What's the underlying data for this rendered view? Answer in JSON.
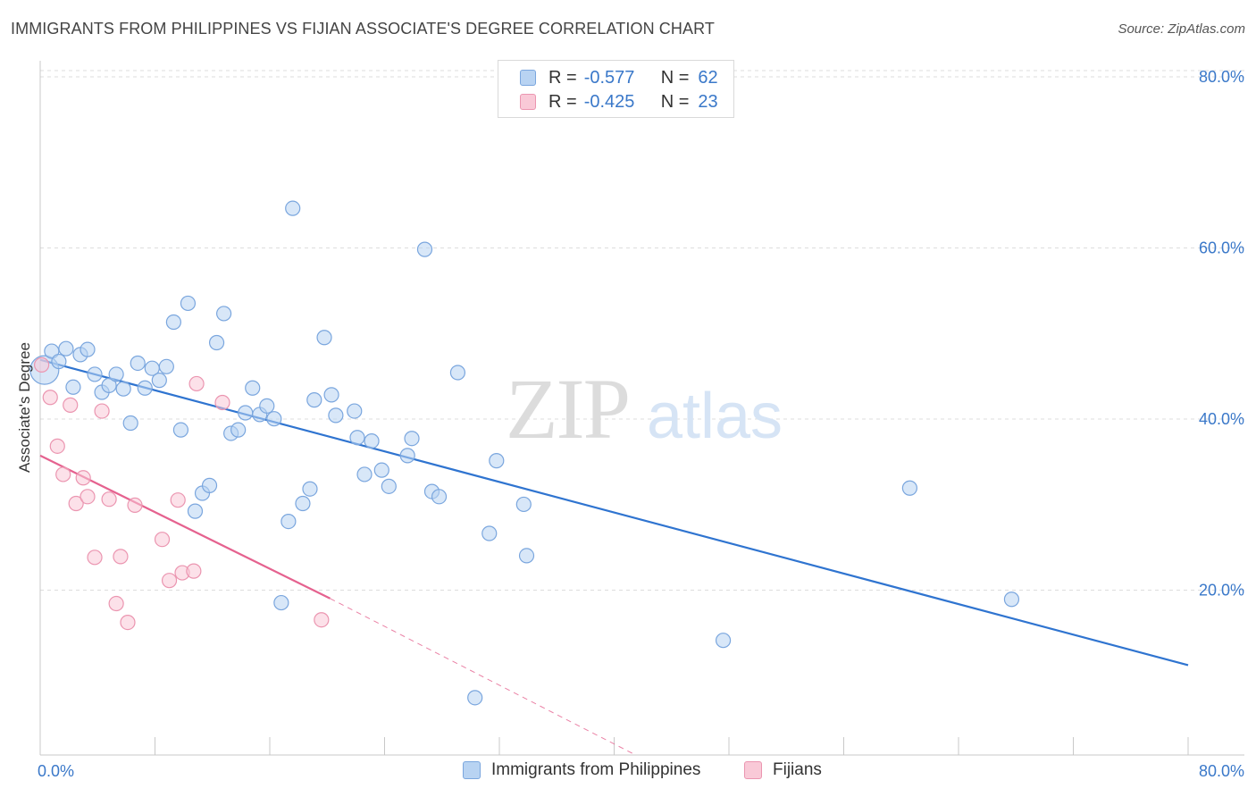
{
  "title": "IMMIGRANTS FROM PHILIPPINES VS FIJIAN ASSOCIATE'S DEGREE CORRELATION CHART",
  "source": "Source: ZipAtlas.com",
  "watermark": {
    "zip": "ZIP",
    "atlas": "atlas"
  },
  "legend": {
    "r_label": "R =",
    "n_label": "N =",
    "rows": [
      {
        "r": "-0.577",
        "n": "62"
      },
      {
        "r": "-0.425",
        "n": "23"
      }
    ]
  },
  "bottom_legend": [
    "Immigrants from Philippines",
    "Fijians"
  ],
  "colors": {
    "blue_fill": "#b8d3f2",
    "blue_stroke": "#7aa6de",
    "blue_line": "#2f74d0",
    "pink_fill": "#f9c9d7",
    "pink_stroke": "#eb95b0",
    "pink_line": "#e5628f",
    "axis_text": "#3a78c9",
    "grid": "#dddddd"
  },
  "chart_data": {
    "type": "scatter",
    "ylabel": "Associate's Degree",
    "xlim": [
      0,
      80
    ],
    "ylim": [
      0,
      80
    ],
    "x_tick_labels": [
      "0.0%",
      "80.0%"
    ],
    "y_ticks": [
      20,
      40,
      60,
      80
    ],
    "y_tick_labels": [
      "20.0%",
      "40.0%",
      "60.0%",
      "80.0%"
    ],
    "grid": true,
    "series": [
      {
        "name": "Immigrants from Philippines",
        "color": "blue",
        "points": [
          [
            0.3,
            45.0
          ],
          [
            0.8,
            47.2
          ],
          [
            1.3,
            46.0
          ],
          [
            1.8,
            47.5
          ],
          [
            2.3,
            43.0
          ],
          [
            2.8,
            46.8
          ],
          [
            3.3,
            47.4
          ],
          [
            3.8,
            44.5
          ],
          [
            4.3,
            42.4
          ],
          [
            4.8,
            43.2
          ],
          [
            5.3,
            44.5
          ],
          [
            5.8,
            42.8
          ],
          [
            6.3,
            38.8
          ],
          [
            6.8,
            45.8
          ],
          [
            7.3,
            42.9
          ],
          [
            7.8,
            45.2
          ],
          [
            8.3,
            43.8
          ],
          [
            8.8,
            45.4
          ],
          [
            9.3,
            50.6
          ],
          [
            9.8,
            38.0
          ],
          [
            10.3,
            52.8
          ],
          [
            10.8,
            28.5
          ],
          [
            11.3,
            30.6
          ],
          [
            11.8,
            31.5
          ],
          [
            12.3,
            48.2
          ],
          [
            12.8,
            51.6
          ],
          [
            13.3,
            37.6
          ],
          [
            13.8,
            38.0
          ],
          [
            14.3,
            40.0
          ],
          [
            14.8,
            42.9
          ],
          [
            15.3,
            39.8
          ],
          [
            15.8,
            40.8
          ],
          [
            16.3,
            39.3
          ],
          [
            16.8,
            17.8
          ],
          [
            17.3,
            27.3
          ],
          [
            17.6,
            63.9
          ],
          [
            18.3,
            29.4
          ],
          [
            18.8,
            31.1
          ],
          [
            19.1,
            41.5
          ],
          [
            19.8,
            48.8
          ],
          [
            20.3,
            42.1
          ],
          [
            20.6,
            39.7
          ],
          [
            21.9,
            40.2
          ],
          [
            22.1,
            37.1
          ],
          [
            22.6,
            32.8
          ],
          [
            23.1,
            36.7
          ],
          [
            23.8,
            33.3
          ],
          [
            24.3,
            31.4
          ],
          [
            25.6,
            35.0
          ],
          [
            25.9,
            37.0
          ],
          [
            26.8,
            59.1
          ],
          [
            27.3,
            30.8
          ],
          [
            27.8,
            30.2
          ],
          [
            29.1,
            44.7
          ],
          [
            30.3,
            6.7
          ],
          [
            31.3,
            25.9
          ],
          [
            31.8,
            34.4
          ],
          [
            33.7,
            29.3
          ],
          [
            33.9,
            23.3
          ],
          [
            47.6,
            13.4
          ],
          [
            60.6,
            31.2
          ],
          [
            67.7,
            18.2
          ]
        ],
        "trend": {
          "x": [
            0,
            80
          ],
          "y": [
            46.2,
            10.5
          ]
        }
      },
      {
        "name": "Fijians",
        "color": "pink",
        "points": [
          [
            0.1,
            45.6
          ],
          [
            0.7,
            41.8
          ],
          [
            1.2,
            36.1
          ],
          [
            1.6,
            32.8
          ],
          [
            2.1,
            40.9
          ],
          [
            2.5,
            29.4
          ],
          [
            3.0,
            32.4
          ],
          [
            3.3,
            30.2
          ],
          [
            3.8,
            23.1
          ],
          [
            4.3,
            40.2
          ],
          [
            4.8,
            29.9
          ],
          [
            5.3,
            17.7
          ],
          [
            5.6,
            23.2
          ],
          [
            6.1,
            15.5
          ],
          [
            6.6,
            29.2
          ],
          [
            8.5,
            25.2
          ],
          [
            9.0,
            20.4
          ],
          [
            9.6,
            29.8
          ],
          [
            9.9,
            21.3
          ],
          [
            10.7,
            21.5
          ],
          [
            10.9,
            43.4
          ],
          [
            12.7,
            41.2
          ],
          [
            19.6,
            15.8
          ]
        ],
        "trend": {
          "x": [
            0,
            20.2
          ],
          "y": [
            35.0,
            18.3
          ],
          "dashed_to": [
            41.5,
            0
          ]
        }
      }
    ]
  }
}
